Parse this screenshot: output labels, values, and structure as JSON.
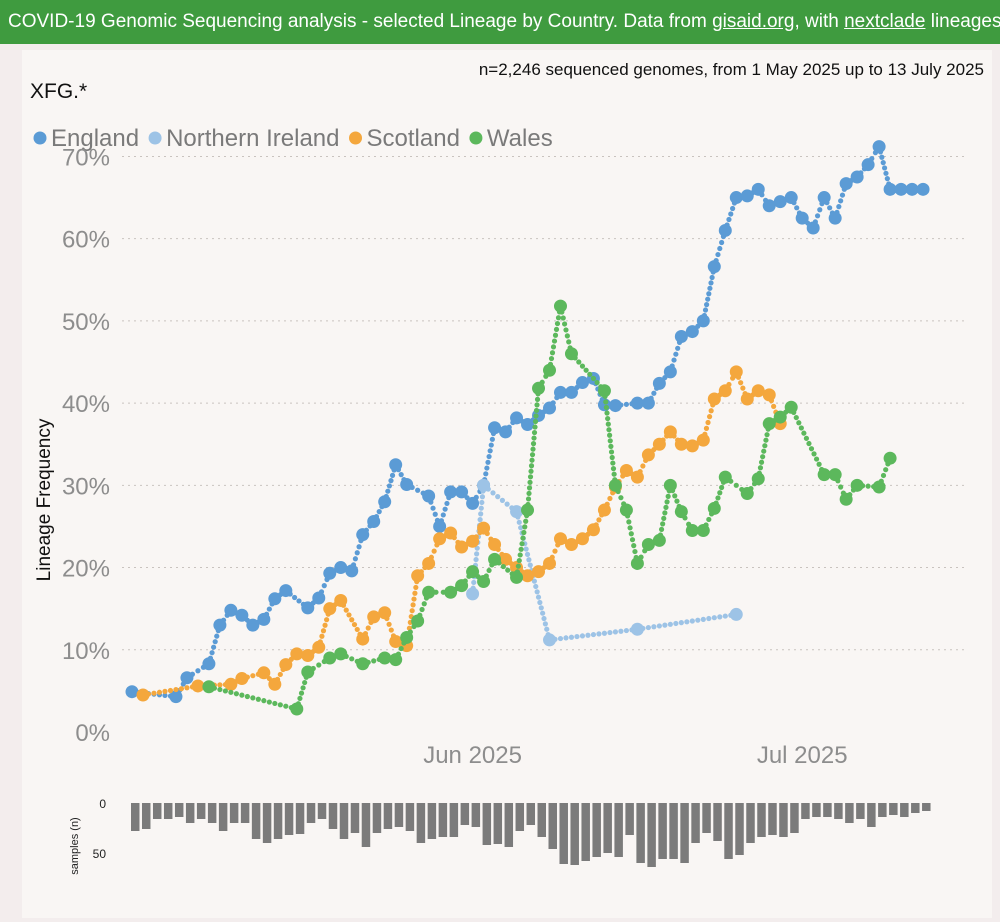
{
  "header": {
    "title": "COVID-19 Genomic Sequencing analysis - selected Lineage by Country.",
    "data_from": "Data from",
    "link1": "gisaid.org",
    "with": ", with",
    "link2": "nextclade",
    "lineages": "lineages"
  },
  "chart_data": {
    "type": "line",
    "title": "XFG.*",
    "subtitle": "n=2,246 sequenced genomes, from 1 May 2025 up to 13 July 2025",
    "ylabel": "Lineage Frequency",
    "xlabel": "",
    "ylim": [
      0,
      0.72
    ],
    "yticks": [
      0,
      0.1,
      0.2,
      0.3,
      0.4,
      0.5,
      0.6,
      0.7
    ],
    "ytick_labels": [
      "0%",
      "10%",
      "20%",
      "30%",
      "40%",
      "50%",
      "60%",
      "70%"
    ],
    "xlim": [
      "2025-05-01",
      "2025-07-16"
    ],
    "xticks": [
      "2025-06-01",
      "2025-07-01"
    ],
    "xtick_labels": [
      "Jun 2025",
      "Jul 2025"
    ],
    "grid": true,
    "legend_position": "top-left",
    "series": [
      {
        "name": "England",
        "color": "#5b9bd5",
        "points": [
          [
            "2025-05-01",
            0.049
          ],
          [
            "2025-05-05",
            0.043
          ],
          [
            "2025-05-06",
            0.066
          ],
          [
            "2025-05-08",
            0.083
          ],
          [
            "2025-05-09",
            0.13
          ],
          [
            "2025-05-10",
            0.148
          ],
          [
            "2025-05-11",
            0.142
          ],
          [
            "2025-05-12",
            0.13
          ],
          [
            "2025-05-13",
            0.137
          ],
          [
            "2025-05-14",
            0.162
          ],
          [
            "2025-05-15",
            0.172
          ],
          [
            "2025-05-17",
            0.151
          ],
          [
            "2025-05-18",
            0.163
          ],
          [
            "2025-05-19",
            0.193
          ],
          [
            "2025-05-20",
            0.2
          ],
          [
            "2025-05-21",
            0.196
          ],
          [
            "2025-05-22",
            0.24
          ],
          [
            "2025-05-23",
            0.256
          ],
          [
            "2025-05-24",
            0.28
          ],
          [
            "2025-05-25",
            0.325
          ],
          [
            "2025-05-26",
            0.301
          ],
          [
            "2025-05-28",
            0.287
          ],
          [
            "2025-05-29",
            0.25
          ],
          [
            "2025-05-30",
            0.292
          ],
          [
            "2025-05-31",
            0.292
          ],
          [
            "2025-06-01",
            0.278
          ],
          [
            "2025-06-02",
            0.3
          ],
          [
            "2025-06-03",
            0.37
          ],
          [
            "2025-06-04",
            0.365
          ],
          [
            "2025-06-05",
            0.382
          ],
          [
            "2025-06-06",
            0.374
          ],
          [
            "2025-06-07",
            0.385
          ],
          [
            "2025-06-08",
            0.394
          ],
          [
            "2025-06-09",
            0.413
          ],
          [
            "2025-06-10",
            0.413
          ],
          [
            "2025-06-11",
            0.425
          ],
          [
            "2025-06-12",
            0.43
          ],
          [
            "2025-06-13",
            0.398
          ],
          [
            "2025-06-14",
            0.397
          ],
          [
            "2025-06-16",
            0.4
          ],
          [
            "2025-06-17",
            0.4
          ],
          [
            "2025-06-18",
            0.424
          ],
          [
            "2025-06-19",
            0.438
          ],
          [
            "2025-06-20",
            0.481
          ],
          [
            "2025-06-21",
            0.487
          ],
          [
            "2025-06-22",
            0.5
          ],
          [
            "2025-06-23",
            0.566
          ],
          [
            "2025-06-24",
            0.61
          ],
          [
            "2025-06-25",
            0.65
          ],
          [
            "2025-06-26",
            0.652
          ],
          [
            "2025-06-27",
            0.66
          ],
          [
            "2025-06-28",
            0.64
          ],
          [
            "2025-06-29",
            0.645
          ],
          [
            "2025-06-30",
            0.65
          ],
          [
            "2025-07-01",
            0.625
          ],
          [
            "2025-07-02",
            0.613
          ],
          [
            "2025-07-03",
            0.65
          ],
          [
            "2025-07-04",
            0.625
          ],
          [
            "2025-07-05",
            0.667
          ],
          [
            "2025-07-06",
            0.675
          ],
          [
            "2025-07-07",
            0.69
          ],
          [
            "2025-07-08",
            0.712
          ],
          [
            "2025-07-09",
            0.66
          ],
          [
            "2025-07-10",
            0.66
          ],
          [
            "2025-07-11",
            0.66
          ],
          [
            "2025-07-12",
            0.66
          ]
        ]
      },
      {
        "name": "Northern Ireland",
        "color": "#9dc3e6",
        "points": [
          [
            "2025-06-01",
            0.168
          ],
          [
            "2025-06-02",
            0.3
          ],
          [
            "2025-06-05",
            0.268
          ],
          [
            "2025-06-08",
            0.112
          ],
          [
            "2025-06-16",
            0.125
          ],
          [
            "2025-06-25",
            0.143
          ]
        ]
      },
      {
        "name": "Scotland",
        "color": "#f4a73d",
        "points": [
          [
            "2025-05-02",
            0.045
          ],
          [
            "2025-05-07",
            0.056
          ],
          [
            "2025-05-10",
            0.058
          ],
          [
            "2025-05-11",
            0.065
          ],
          [
            "2025-05-13",
            0.072
          ],
          [
            "2025-05-14",
            0.058
          ],
          [
            "2025-05-15",
            0.082
          ],
          [
            "2025-05-16",
            0.095
          ],
          [
            "2025-05-17",
            0.093
          ],
          [
            "2025-05-18",
            0.103
          ],
          [
            "2025-05-19",
            0.15
          ],
          [
            "2025-05-20",
            0.16
          ],
          [
            "2025-05-22",
            0.113
          ],
          [
            "2025-05-23",
            0.14
          ],
          [
            "2025-05-24",
            0.145
          ],
          [
            "2025-05-25",
            0.11
          ],
          [
            "2025-05-26",
            0.105
          ],
          [
            "2025-05-27",
            0.19
          ],
          [
            "2025-05-28",
            0.205
          ],
          [
            "2025-05-29",
            0.235
          ],
          [
            "2025-05-30",
            0.242
          ],
          [
            "2025-05-31",
            0.225
          ],
          [
            "2025-06-01",
            0.232
          ],
          [
            "2025-06-02",
            0.248
          ],
          [
            "2025-06-03",
            0.228
          ],
          [
            "2025-06-04",
            0.21
          ],
          [
            "2025-06-05",
            0.2
          ],
          [
            "2025-06-06",
            0.19
          ],
          [
            "2025-06-07",
            0.195
          ],
          [
            "2025-06-08",
            0.205
          ],
          [
            "2025-06-09",
            0.235
          ],
          [
            "2025-06-10",
            0.228
          ],
          [
            "2025-06-11",
            0.235
          ],
          [
            "2025-06-12",
            0.246
          ],
          [
            "2025-06-13",
            0.27
          ],
          [
            "2025-06-14",
            0.298
          ],
          [
            "2025-06-15",
            0.318
          ],
          [
            "2025-06-16",
            0.31
          ],
          [
            "2025-06-17",
            0.337
          ],
          [
            "2025-06-18",
            0.35
          ],
          [
            "2025-06-19",
            0.365
          ],
          [
            "2025-06-20",
            0.35
          ],
          [
            "2025-06-21",
            0.348
          ],
          [
            "2025-06-22",
            0.355
          ],
          [
            "2025-06-23",
            0.405
          ],
          [
            "2025-06-24",
            0.415
          ],
          [
            "2025-06-25",
            0.438
          ],
          [
            "2025-06-26",
            0.405
          ],
          [
            "2025-06-27",
            0.415
          ],
          [
            "2025-06-28",
            0.41
          ],
          [
            "2025-06-29",
            0.375
          ]
        ]
      },
      {
        "name": "Wales",
        "color": "#5cb85c",
        "points": [
          [
            "2025-05-08",
            0.055
          ],
          [
            "2025-05-16",
            0.028
          ],
          [
            "2025-05-17",
            0.073
          ],
          [
            "2025-05-19",
            0.09
          ],
          [
            "2025-05-20",
            0.095
          ],
          [
            "2025-05-22",
            0.083
          ],
          [
            "2025-05-24",
            0.09
          ],
          [
            "2025-05-25",
            0.088
          ],
          [
            "2025-05-26",
            0.115
          ],
          [
            "2025-05-27",
            0.135
          ],
          [
            "2025-05-28",
            0.17
          ],
          [
            "2025-05-30",
            0.17
          ],
          [
            "2025-05-31",
            0.178
          ],
          [
            "2025-06-01",
            0.195
          ],
          [
            "2025-06-02",
            0.183
          ],
          [
            "2025-06-03",
            0.21
          ],
          [
            "2025-06-05",
            0.188
          ],
          [
            "2025-06-06",
            0.27
          ],
          [
            "2025-06-07",
            0.418
          ],
          [
            "2025-06-08",
            0.44
          ],
          [
            "2025-06-09",
            0.518
          ],
          [
            "2025-06-10",
            0.46
          ],
          [
            "2025-06-13",
            0.415
          ],
          [
            "2025-06-14",
            0.3
          ],
          [
            "2025-06-15",
            0.27
          ],
          [
            "2025-06-16",
            0.205
          ],
          [
            "2025-06-17",
            0.228
          ],
          [
            "2025-06-18",
            0.233
          ],
          [
            "2025-06-19",
            0.3
          ],
          [
            "2025-06-20",
            0.268
          ],
          [
            "2025-06-21",
            0.245
          ],
          [
            "2025-06-22",
            0.245
          ],
          [
            "2025-06-23",
            0.272
          ],
          [
            "2025-06-24",
            0.31
          ],
          [
            "2025-06-26",
            0.29
          ],
          [
            "2025-06-27",
            0.308
          ],
          [
            "2025-06-28",
            0.375
          ],
          [
            "2025-06-29",
            0.383
          ],
          [
            "2025-06-30",
            0.395
          ],
          [
            "2025-07-03",
            0.313
          ],
          [
            "2025-07-04",
            0.313
          ],
          [
            "2025-07-05",
            0.283
          ],
          [
            "2025-07-06",
            0.3
          ],
          [
            "2025-07-08",
            0.298
          ],
          [
            "2025-07-09",
            0.333
          ]
        ]
      }
    ],
    "samples": {
      "ylabel": "samples (n)",
      "yticks": [
        0,
        50
      ],
      "ymax": 70,
      "start": "2025-05-01",
      "values": [
        28,
        26,
        16,
        16,
        14,
        20,
        16,
        20,
        28,
        20,
        20,
        36,
        40,
        36,
        32,
        31,
        20,
        16,
        26,
        36,
        30,
        44,
        30,
        26,
        24,
        28,
        40,
        36,
        34,
        34,
        22,
        24,
        42,
        41,
        44,
        28,
        22,
        34,
        46,
        61,
        62,
        58,
        54,
        50,
        54,
        32,
        60,
        64,
        56,
        56,
        60,
        40,
        30,
        38,
        56,
        52,
        40,
        34,
        32,
        34,
        30,
        16,
        14,
        14,
        16,
        20,
        16,
        24,
        14,
        12,
        14,
        10,
        8
      ]
    }
  }
}
